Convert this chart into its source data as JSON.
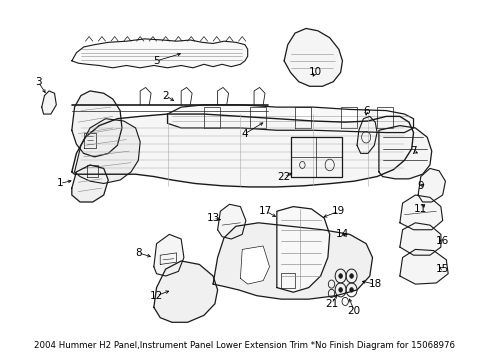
{
  "title": "2004 Hummer H2 Panel,Instrument Panel Lower Extension Trim *No Finish Diagram for 15068976",
  "background_color": "#ffffff",
  "fig_width": 4.89,
  "fig_height": 3.6,
  "dpi": 100,
  "line_color": "#1a1a1a",
  "text_color": "#000000",
  "label_fontsize": 7.5,
  "title_fontsize": 6.2
}
